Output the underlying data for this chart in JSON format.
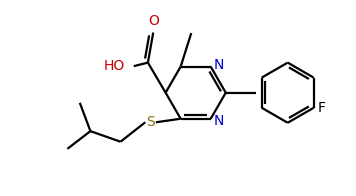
{
  "bg_color": "#ffffff",
  "line_color": "#000000",
  "N_color": "#0000cd",
  "S_color": "#8b6914",
  "O_color": "#cc0000",
  "F_color": "#000000",
  "linewidth": 1.6,
  "fontsize": 10,
  "figsize": [
    3.56,
    1.96
  ],
  "dpi": 100,
  "xlim": [
    0,
    10
  ],
  "ylim": [
    0,
    5.5
  ]
}
